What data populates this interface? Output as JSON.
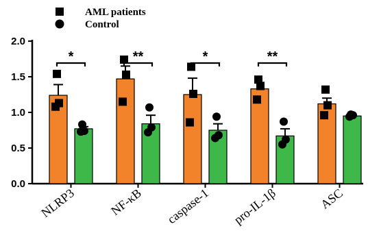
{
  "chart_data": {
    "type": "bar",
    "categories": [
      "NLRP3",
      "NF-κB",
      "caspase-1",
      "pro-IL-1β",
      "ASC"
    ],
    "category_labels_visible": [
      "NLRP3",
      "NF-κB",
      "caspase-1",
      "pro-IL-1β",
      "ASC"
    ],
    "series": [
      {
        "name": "AML patients",
        "color": "#f2832b",
        "marker": "square",
        "values": [
          1.24,
          1.47,
          1.25,
          1.33,
          1.12
        ],
        "errors": [
          0.15,
          0.18,
          0.23,
          0.09,
          0.08
        ],
        "points": [
          [
            1.54,
            1.13,
            1.08
          ],
          [
            1.74,
            1.53,
            1.15
          ],
          [
            1.64,
            1.26,
            0.86
          ],
          [
            1.46,
            1.37,
            1.18
          ],
          [
            1.32,
            1.1,
            0.96
          ]
        ]
      },
      {
        "name": "Control",
        "color": "#3fb84a",
        "marker": "circle",
        "values": [
          0.77,
          0.84,
          0.75,
          0.67,
          0.95
        ],
        "errors": [
          0.03,
          0.12,
          0.09,
          0.1,
          0.01
        ],
        "points": [
          [
            0.83,
            0.74,
            0.73
          ],
          [
            1.07,
            0.79,
            0.72
          ],
          [
            0.94,
            0.68,
            0.64
          ],
          [
            0.87,
            0.62,
            0.55
          ],
          [
            0.97,
            0.96,
            0.94
          ]
        ]
      }
    ],
    "significance": [
      "*",
      "**",
      "*",
      "**",
      ""
    ],
    "ylim": [
      0.0,
      2.0
    ],
    "yticks": [
      "0.0",
      "0.5",
      "1.0",
      "1.5",
      "2.0"
    ],
    "xlabel": "",
    "ylabel": "",
    "grid": false,
    "legend": {
      "placement": "top-left",
      "entries": [
        "AML patients",
        "Control"
      ]
    }
  }
}
